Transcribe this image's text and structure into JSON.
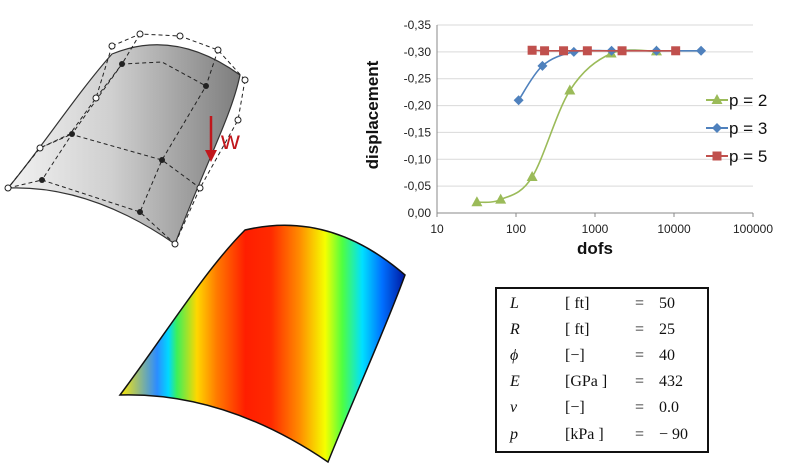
{
  "load_label": "w",
  "colors": {
    "p2": "#9bbb59",
    "p3": "#4f81bd",
    "p5": "#c0504d",
    "load_arrow": "#c0171c",
    "grid": "#d9d9d9"
  },
  "chart_data": {
    "type": "line",
    "xlabel": "dofs",
    "ylabel": "displacement",
    "xscale": "log",
    "xlim": [
      10,
      100000
    ],
    "ylim": [
      0,
      -0.35
    ],
    "y_axis_reversed": true,
    "grid": "horizontal",
    "legend_position": "right",
    "x_tick_labels": [
      "10",
      "100",
      "1000",
      "10000",
      "100000"
    ],
    "y_tick_labels": [
      "0,00",
      "-0,05",
      "-0,10",
      "-0,15",
      "-0,20",
      "-0,25",
      "-0,30",
      "-0,35"
    ],
    "series": [
      {
        "name": "p = 2",
        "marker": "triangle",
        "x": [
          32,
          64,
          160,
          480,
          1600,
          6000
        ],
        "y": [
          -0.02,
          -0.025,
          -0.067,
          -0.228,
          -0.297,
          -0.301
        ]
      },
      {
        "name": "p = 3",
        "marker": "diamond",
        "x": [
          108,
          216,
          540,
          1620,
          6000,
          22000
        ],
        "y": [
          -0.21,
          -0.274,
          -0.3,
          -0.302,
          -0.302,
          -0.302
        ]
      },
      {
        "name": "p = 5",
        "marker": "square",
        "x": [
          160,
          230,
          400,
          800,
          2200,
          10500
        ],
        "y": [
          -0.303,
          -0.302,
          -0.302,
          -0.302,
          -0.302,
          -0.302
        ]
      }
    ]
  },
  "parameters": [
    {
      "symbol": "L",
      "unit": "[ ft]",
      "eq": "=",
      "value": "50"
    },
    {
      "symbol": "R",
      "unit": "[ ft]",
      "eq": "=",
      "value": "25"
    },
    {
      "symbol": "ϕ",
      "unit": "[−]",
      "eq": "=",
      "value": "40"
    },
    {
      "symbol": "E",
      "unit": "[GPa ]",
      "eq": "=",
      "value": "432"
    },
    {
      "symbol": "ν",
      "unit": "[−]",
      "eq": "=",
      "value": "0.0"
    },
    {
      "symbol": "p",
      "unit": "[kPa ]",
      "eq": "=",
      "value": "− 90"
    }
  ]
}
